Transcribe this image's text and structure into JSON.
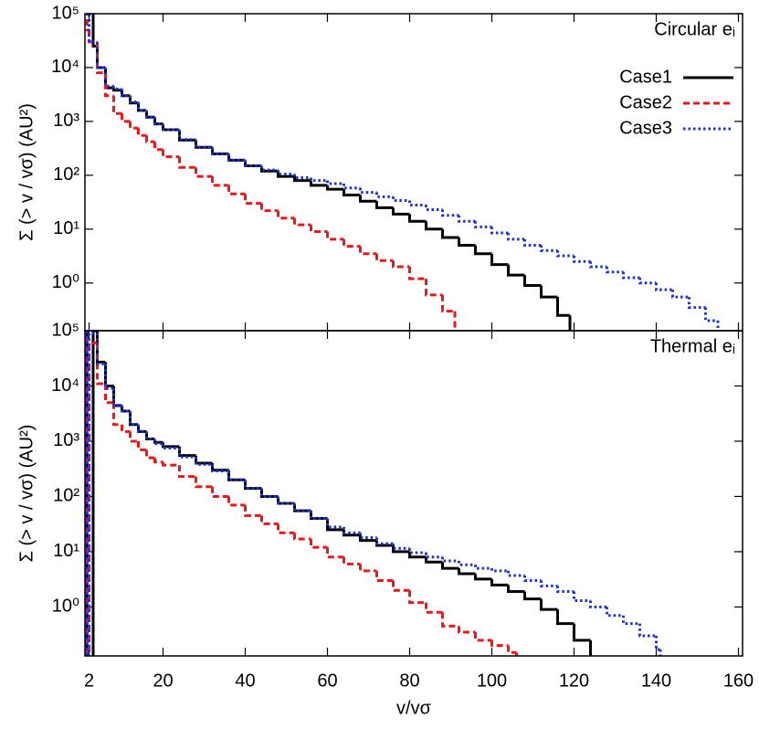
{
  "chart_data": [
    {
      "type": "step",
      "y_label": "Σ (> v / vσ) (AU²)",
      "annotation": "Circular eᵢ",
      "log_y": true,
      "xlim": [
        1,
        161
      ],
      "ylim": [
        0.13,
        100000
      ],
      "xticks": [
        2,
        20,
        40,
        60,
        80,
        100,
        120,
        140,
        160
      ],
      "yticks": [
        {
          "value": 1,
          "label": "10⁰"
        },
        {
          "value": 10,
          "label": "10¹"
        },
        {
          "value": 100,
          "label": "10²"
        },
        {
          "value": 1000,
          "label": "10³"
        },
        {
          "value": 10000,
          "label": "10⁴"
        },
        {
          "value": 100000,
          "label": "10⁵"
        }
      ],
      "legend": "upper right",
      "series": [
        {
          "name": "Case1",
          "color": "#000000",
          "style": "solid",
          "x": [
            3,
            4,
            6,
            8,
            10,
            12,
            14,
            16,
            18,
            20,
            24,
            28,
            32,
            36,
            40,
            44,
            48,
            52,
            56,
            60,
            64,
            68,
            72,
            76,
            80,
            84,
            88,
            92,
            96,
            100,
            104,
            108,
            112,
            116,
            119
          ],
          "values": [
            25000,
            10000,
            4200,
            3800,
            3000,
            2200,
            1600,
            1200,
            900,
            700,
            450,
            330,
            250,
            190,
            150,
            120,
            95,
            80,
            65,
            55,
            43,
            33,
            25,
            19,
            14,
            10,
            7,
            5,
            3.5,
            2.2,
            1.4,
            0.9,
            0.55,
            0.25,
            0.1
          ]
        },
        {
          "name": "Case2",
          "color": "#e8191c",
          "style": "dashed",
          "x": [
            1.5,
            2,
            4,
            6,
            8,
            10,
            12,
            14,
            16,
            18,
            20,
            24,
            28,
            32,
            36,
            40,
            44,
            48,
            52,
            56,
            60,
            64,
            68,
            72,
            76,
            80,
            84,
            88,
            91
          ],
          "values": [
            50000,
            30000,
            8000,
            3000,
            1400,
            1000,
            750,
            550,
            420,
            300,
            220,
            140,
            95,
            65,
            45,
            30,
            22,
            16,
            12,
            9,
            6.5,
            4.8,
            3.5,
            2.6,
            2,
            1.2,
            0.6,
            0.3,
            0.1
          ]
        },
        {
          "name": "Case3",
          "color": "#1a2fe0",
          "style": "dotted",
          "x": [
            2,
            4,
            6,
            8,
            10,
            12,
            14,
            16,
            18,
            20,
            24,
            28,
            32,
            36,
            40,
            44,
            48,
            52,
            56,
            60,
            64,
            68,
            72,
            76,
            80,
            84,
            88,
            92,
            96,
            100,
            104,
            108,
            112,
            116,
            120,
            124,
            128,
            132,
            136,
            140,
            144,
            148,
            152,
            155
          ],
          "values": [
            30000,
            10000,
            4500,
            4000,
            3000,
            2300,
            1600,
            1200,
            900,
            700,
            460,
            330,
            250,
            190,
            150,
            125,
            105,
            90,
            80,
            70,
            58,
            48,
            40,
            34,
            28,
            23,
            18,
            14,
            11,
            8.5,
            6.5,
            5,
            4,
            3.2,
            2.5,
            2,
            1.6,
            1.25,
            1,
            0.75,
            0.55,
            0.35,
            0.2,
            0.1
          ]
        }
      ]
    },
    {
      "type": "step",
      "x_label": "v/vσ",
      "y_label": "Σ (> v / vσ) (AU²)",
      "annotation": "Thermal eᵢ",
      "log_y": true,
      "xlim": [
        1,
        161
      ],
      "ylim": [
        0.13,
        100000
      ],
      "xticks": [
        2,
        20,
        40,
        60,
        80,
        100,
        120,
        140,
        160
      ],
      "yticks": [
        {
          "value": 1,
          "label": "10⁰"
        },
        {
          "value": 10,
          "label": "10¹"
        },
        {
          "value": 100,
          "label": "10²"
        },
        {
          "value": 1000,
          "label": "10³"
        },
        {
          "value": 10000,
          "label": "10⁴"
        },
        {
          "value": 100000,
          "label": "10⁵"
        }
      ],
      "series": [
        {
          "color": "#000000",
          "style": "solid",
          "x": [
            1.5,
            3,
            4,
            6,
            8,
            10,
            12,
            14,
            16,
            18,
            20,
            24,
            28,
            32,
            36,
            40,
            44,
            48,
            52,
            56,
            60,
            64,
            68,
            72,
            76,
            80,
            84,
            88,
            92,
            96,
            100,
            104,
            108,
            112,
            116,
            120,
            124
          ],
          "values": [
            0.1,
            100000,
            27000,
            10000,
            4400,
            3500,
            2000,
            1500,
            1100,
            950,
            800,
            550,
            400,
            300,
            200,
            140,
            100,
            75,
            55,
            40,
            25,
            20,
            16,
            13,
            10,
            8,
            6.5,
            5,
            4,
            3.2,
            2.5,
            1.9,
            1.4,
            0.9,
            0.5,
            0.25,
            0.1
          ]
        },
        {
          "color": "#e8191c",
          "style": "dashed",
          "x": [
            1.5,
            2,
            4,
            6,
            8,
            10,
            12,
            14,
            16,
            18,
            20,
            24,
            28,
            32,
            36,
            40,
            44,
            48,
            52,
            56,
            60,
            64,
            68,
            72,
            76,
            80,
            84,
            88,
            92,
            96,
            100,
            104,
            106
          ],
          "values": [
            0.1,
            60000,
            11000,
            5000,
            2000,
            1500,
            1000,
            700,
            500,
            420,
            370,
            230,
            150,
            100,
            70,
            45,
            32,
            22,
            17,
            12,
            8,
            6,
            4.5,
            3,
            2,
            1.2,
            0.8,
            0.45,
            0.35,
            0.25,
            0.2,
            0.15,
            0.1
          ]
        },
        {
          "color": "#1a2fe0",
          "style": "dotted",
          "x": [
            1.5,
            2,
            4,
            6,
            8,
            10,
            12,
            14,
            16,
            18,
            20,
            24,
            28,
            32,
            36,
            40,
            44,
            48,
            52,
            56,
            60,
            64,
            68,
            72,
            76,
            80,
            84,
            88,
            92,
            96,
            100,
            104,
            108,
            112,
            116,
            120,
            124,
            128,
            132,
            136,
            140,
            141
          ],
          "values": [
            0.1,
            90000,
            25000,
            9000,
            4500,
            3500,
            2000,
            1500,
            1100,
            900,
            750,
            520,
            380,
            290,
            200,
            140,
            100,
            75,
            55,
            40,
            28,
            22,
            18,
            14,
            11.5,
            9.6,
            8,
            6.8,
            5.8,
            5,
            4.5,
            3.7,
            3,
            2.4,
            1.9,
            1.3,
            1,
            0.7,
            0.5,
            0.3,
            0.17,
            0.1
          ]
        }
      ]
    }
  ]
}
